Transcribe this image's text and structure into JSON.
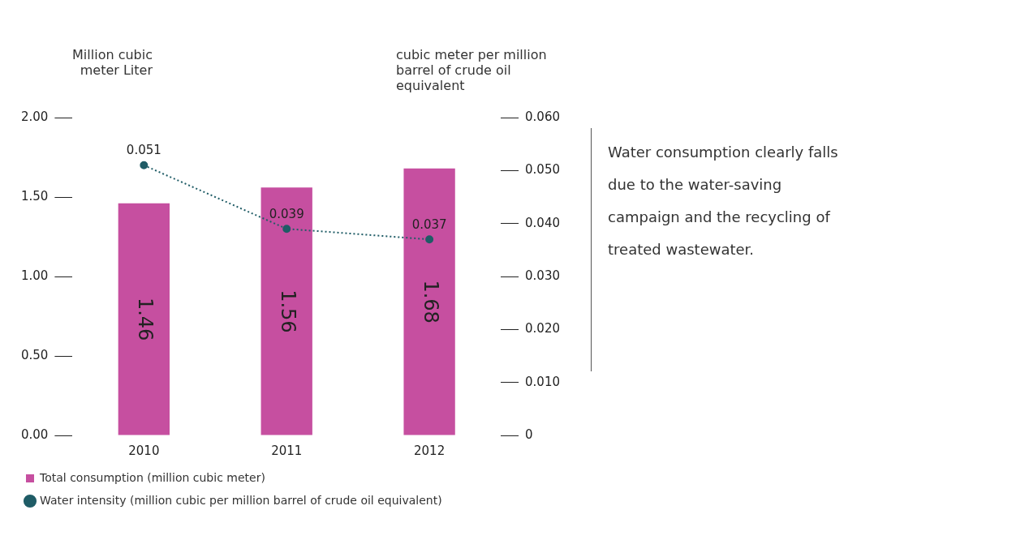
{
  "chart_data": {
    "type": "bar",
    "ylabel": "Million cubic meter Liter",
    "y2label": "cubic meter per million barrel of crude oil equivalent",
    "categories": [
      "2010",
      "2011",
      "2012"
    ],
    "series": [
      {
        "name": "Total consumption (million cubic meter)",
        "color": "#c64fa0",
        "values": [
          1.46,
          1.56,
          1.68
        ]
      },
      {
        "name": "Water intensity (million cubic per million barrel of crude oil equivalent)",
        "type": "line",
        "axis": "y2",
        "color": "#1f5c66",
        "values": [
          0.051,
          0.039,
          0.037
        ]
      }
    ],
    "ylim": [
      0,
      2
    ],
    "yticks": [
      {
        "value": 0,
        "label": "0.00"
      },
      {
        "value": 0.5,
        "label": "0.50"
      },
      {
        "value": 1,
        "label": "1.00"
      },
      {
        "value": 1.5,
        "label": "1.50"
      },
      {
        "value": 2,
        "label": "2.00"
      }
    ],
    "y2lim": [
      0,
      0.06
    ],
    "y2ticks": [
      0,
      {
        "value": 0.01,
        "label": "0.010"
      },
      {
        "value": 0.02,
        "label": "0.020"
      },
      {
        "value": 0.03,
        "label": "0.030"
      },
      {
        "value": 0.04,
        "label": "0.040"
      },
      {
        "value": 0.05,
        "label": "0.050"
      },
      {
        "value": 0.06,
        "label": "0.060"
      }
    ],
    "data_labels": true,
    "legend": "bottom",
    "marker": "circle",
    "line_style": "dotted",
    "grid": false,
    "annotations": [
      "Water consumption clearly falls due to the water-saving campaign and the recycling of treated wastewater."
    ]
  }
}
